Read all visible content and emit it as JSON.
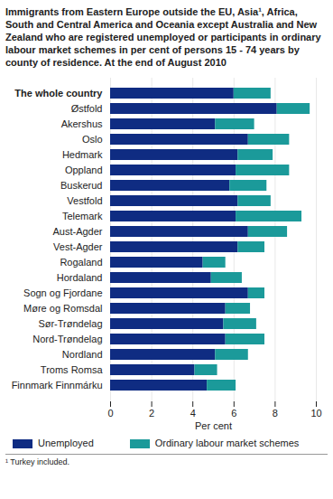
{
  "chart_data": {
    "type": "bar",
    "orientation": "horizontal",
    "stacked": true,
    "title": "Immigrants from  Eastern Europe outside the EU, Asia¹, Africa, South and Central America and Oceania except Australia and New Zealand who are registered unemployed or participants in ordinary labour market schemes in per cent of persons 15 - 74 years by county of residence. At the end of August 2010",
    "x_label": "Per cent",
    "footnote": "¹ Turkey included.",
    "categories": [
      "The whole country",
      "Østfold",
      "Akershus",
      "Oslo",
      "Hedmark",
      "Oppland",
      "Buskerud",
      "Vestfold",
      "Telemark",
      "Aust-Agder",
      "Vest-Agder",
      "Rogaland",
      "Hordaland",
      "Sogn og Fjordane",
      "Møre og Romsdal",
      "Sør-Trøndelag",
      "Nord-Trøndelag",
      "Nordland",
      "Troms Romsa",
      "Finnmark Finnmárku"
    ],
    "series": [
      {
        "name": "Unemployed",
        "color": "#0f2c82",
        "values": [
          6.0,
          8.1,
          5.1,
          6.7,
          6.2,
          6.1,
          5.8,
          6.2,
          6.1,
          6.7,
          6.2,
          4.5,
          4.9,
          6.7,
          5.6,
          5.5,
          5.6,
          5.1,
          4.1,
          4.7
        ]
      },
      {
        "name": "Ordinary labour market schemes",
        "color": "#1b9a9a",
        "values": [
          1.8,
          1.6,
          1.9,
          2.0,
          1.7,
          2.6,
          1.8,
          1.6,
          3.2,
          1.9,
          1.3,
          1.1,
          1.5,
          0.8,
          1.2,
          1.6,
          1.9,
          1.6,
          1.1,
          1.4
        ]
      }
    ],
    "xlim": [
      0,
      10
    ],
    "xticks": [
      0,
      2,
      4,
      6,
      8,
      10
    ],
    "grid": true,
    "legend": "bottom",
    "data_labels": false
  }
}
